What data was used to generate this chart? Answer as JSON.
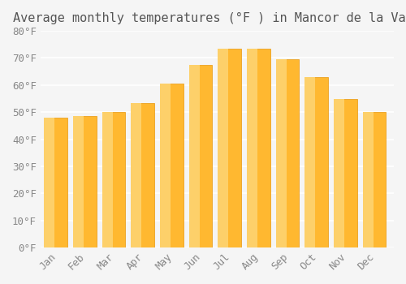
{
  "title": "Average monthly temperatures (°F ) in Mancor de la Vall",
  "months": [
    "Jan",
    "Feb",
    "Mar",
    "Apr",
    "May",
    "Jun",
    "Jul",
    "Aug",
    "Sep",
    "Oct",
    "Nov",
    "Dec"
  ],
  "values": [
    48,
    48.5,
    50,
    53.5,
    60.5,
    67.5,
    73.5,
    73.5,
    69.5,
    63,
    55,
    50
  ],
  "bar_color_top": "#FFA500",
  "bar_color_bottom": "#FFD070",
  "ylim": [
    0,
    80
  ],
  "yticks": [
    0,
    10,
    20,
    30,
    40,
    50,
    60,
    70,
    80
  ],
  "ytick_labels": [
    "0°F",
    "10°F",
    "20°F",
    "30°F",
    "40°F",
    "50°F",
    "60°F",
    "70°F",
    "80°F"
  ],
  "background_color": "#f5f5f5",
  "grid_color": "#ffffff",
  "title_fontsize": 11,
  "tick_fontsize": 9,
  "bar_edge_color": "#FFA500",
  "font_family": "monospace"
}
